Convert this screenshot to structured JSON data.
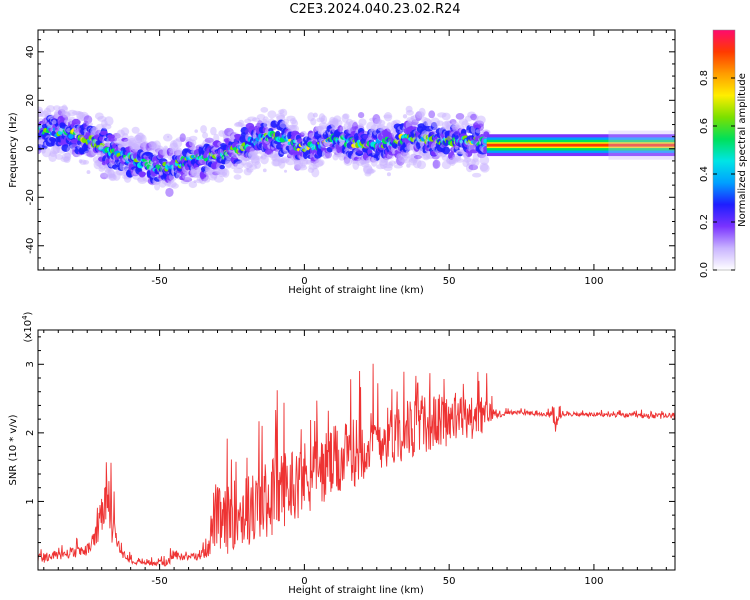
{
  "title": "C2E3.2024.040.23.02.R24",
  "chart_data": [
    {
      "type": "heatmap",
      "xlabel": "Height of straight line (km)",
      "ylabel": "Frequency (Hz)",
      "xlim": [
        -92,
        128
      ],
      "ylim": [
        -50,
        49
      ],
      "xticks": [
        -50,
        0,
        50,
        100
      ],
      "yticks": [
        -40,
        -20,
        0,
        20,
        40
      ],
      "grid": false,
      "colorbar": {
        "label": "Normalized spectral amplitude",
        "range": [
          0.0,
          1.0
        ],
        "ticks": [
          0.0,
          0.2,
          0.4,
          0.6,
          0.8
        ],
        "colors": [
          "#ffffff",
          "#c9b4ff",
          "#7a33ff",
          "#1e1eff",
          "#00a0ff",
          "#00e5e5",
          "#00e05a",
          "#7be000",
          "#ffee00",
          "#ff9c00",
          "#ff3a00",
          "#ff0a6e"
        ]
      },
      "ridge": {
        "x": [
          -92,
          -85,
          -80,
          -75,
          -70,
          -65,
          -60,
          -55,
          -50,
          -45,
          -40,
          -35,
          -30,
          -25,
          -20,
          -15,
          -10,
          -5,
          0,
          5,
          10,
          15,
          20,
          25,
          30,
          35,
          40,
          45,
          50,
          55,
          60,
          63,
          65,
          70,
          80,
          90,
          100,
          110,
          120,
          128
        ],
        "y": [
          7,
          7,
          6,
          4,
          1,
          -2,
          -4,
          -6,
          -8,
          -7,
          -5,
          -4,
          -3,
          -1,
          2,
          4,
          5,
          3,
          0,
          2,
          4,
          3,
          1,
          2,
          3,
          4,
          5,
          4,
          3,
          3,
          3,
          2,
          1.5,
          1.5,
          1.5,
          1.5,
          1.5,
          1.5,
          1.5,
          1.5
        ]
      }
    },
    {
      "type": "line",
      "xlabel": "Height of straight line (km)",
      "ylabel": "SNR (10 * v/v)",
      "y_scale_label": "(x10^4)",
      "xlim": [
        -92,
        128
      ],
      "ylim": [
        0,
        3.5
      ],
      "xticks": [
        -50,
        0,
        50,
        100
      ],
      "yticks": [
        1,
        2,
        3
      ],
      "grid": false,
      "series": [
        {
          "color": "#ee3333",
          "x": [
            -92,
            -85,
            -80,
            -75,
            -72,
            -70,
            -68,
            -66,
            -65,
            -63,
            -60,
            -55,
            -50,
            -47,
            -45,
            -43,
            -40,
            -36,
            -33,
            -31,
            -30,
            -28,
            -25,
            -22,
            -20,
            -15,
            -10,
            -5,
            0,
            5,
            10,
            15,
            20,
            25,
            30,
            35,
            40,
            45,
            50,
            55,
            60,
            63,
            65,
            67,
            70,
            75,
            80,
            85,
            87,
            88,
            90,
            95,
            100,
            110,
            120,
            128
          ],
          "y": [
            0.18,
            0.22,
            0.26,
            0.3,
            0.5,
            0.8,
            1.0,
            0.7,
            0.45,
            0.25,
            0.15,
            0.12,
            0.1,
            0.12,
            0.25,
            0.2,
            0.2,
            0.2,
            0.4,
            0.85,
            0.8,
            0.7,
            0.85,
            0.9,
            0.9,
            1.0,
            1.2,
            1.3,
            1.4,
            1.5,
            1.6,
            1.7,
            1.85,
            1.95,
            2.0,
            2.1,
            2.15,
            2.2,
            2.25,
            2.25,
            2.25,
            2.3,
            2.3,
            2.25,
            2.3,
            2.3,
            2.28,
            2.26,
            2.1,
            2.35,
            2.28,
            2.27,
            2.27,
            2.26,
            2.25,
            2.25
          ],
          "noise_amplitude": [
            0.08,
            0.08,
            0.08,
            0.08,
            0.15,
            0.35,
            0.45,
            0.3,
            0.1,
            0.06,
            0.05,
            0.05,
            0.05,
            0.05,
            0.1,
            0.05,
            0.05,
            0.05,
            0.2,
            0.5,
            0.5,
            0.5,
            0.5,
            0.55,
            0.55,
            0.55,
            0.6,
            0.55,
            0.55,
            0.55,
            0.55,
            0.5,
            0.5,
            0.45,
            0.45,
            0.45,
            0.45,
            0.4,
            0.4,
            0.35,
            0.3,
            0.25,
            0.1,
            0.03,
            0.03,
            0.03,
            0.03,
            0.04,
            0.15,
            0.15,
            0.03,
            0.03,
            0.03,
            0.03,
            0.04,
            0.05
          ]
        }
      ]
    }
  ]
}
